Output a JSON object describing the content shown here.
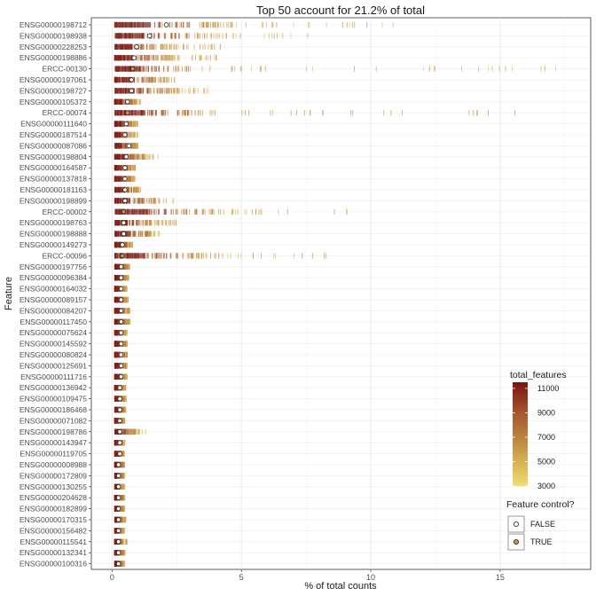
{
  "chart_data": {
    "type": "scatter",
    "title": "Top 50 account for 21.2% of total",
    "xlabel": "% of total counts",
    "ylabel": "Feature",
    "xlim": [
      -0.8,
      18.5
    ],
    "xticks": [
      0,
      5,
      10,
      15
    ],
    "grid": true,
    "features": [
      {
        "name": "ENSG00000198712",
        "median": 2.1,
        "core": [
          0.1,
          4.1
        ],
        "tail": 11.0,
        "control": false
      },
      {
        "name": "ENSG00000198938",
        "median": 1.45,
        "core": [
          0.1,
          3.3
        ],
        "tail": 7.6,
        "control": false
      },
      {
        "name": "ENSG00000228253",
        "median": 0.95,
        "core": [
          0.1,
          2.1
        ],
        "tail": 4.3,
        "control": false
      },
      {
        "name": "ENSG00000198886",
        "median": 0.85,
        "core": [
          0.1,
          2.2
        ],
        "tail": 4.5,
        "control": false
      },
      {
        "name": "ERCC-00130",
        "median": 0.8,
        "core": [
          0.1,
          3.0
        ],
        "tail": 18.0,
        "control": true
      },
      {
        "name": "ENSG00000197061",
        "median": 0.75,
        "core": [
          0.1,
          2.1
        ],
        "tail": 2.5,
        "control": false
      },
      {
        "name": "ENSG00000198727",
        "median": 0.75,
        "core": [
          0.1,
          2.3
        ],
        "tail": 3.8,
        "control": false
      },
      {
        "name": "ENSG00000105372",
        "median": 0.6,
        "core": [
          0.1,
          0.95
        ],
        "tail": 1.1,
        "control": false
      },
      {
        "name": "ERCC-00074",
        "median": 0.6,
        "core": [
          0.1,
          3.5
        ],
        "tail": 15.6,
        "control": true
      },
      {
        "name": "ENSG00000111640",
        "median": 0.55,
        "core": [
          0.1,
          0.9
        ],
        "tail": 1.0,
        "control": false
      },
      {
        "name": "ENSG00000187514",
        "median": 0.5,
        "core": [
          0.1,
          0.85
        ],
        "tail": 1.0,
        "control": false
      },
      {
        "name": "ENSG00000087086",
        "median": 0.65,
        "core": [
          0.1,
          0.95
        ],
        "tail": 1.0,
        "control": false
      },
      {
        "name": "ENSG00000198804",
        "median": 0.55,
        "core": [
          0.1,
          1.3
        ],
        "tail": 1.8,
        "control": false
      },
      {
        "name": "ENSG00000164587",
        "median": 0.5,
        "core": [
          0.1,
          0.85
        ],
        "tail": 0.9,
        "control": false
      },
      {
        "name": "ENSG00000137818",
        "median": 0.5,
        "core": [
          0.1,
          0.85
        ],
        "tail": 0.9,
        "control": false
      },
      {
        "name": "ENSG00000181163",
        "median": 0.5,
        "core": [
          0.1,
          1.0
        ],
        "tail": 1.1,
        "control": false
      },
      {
        "name": "ENSG00000198899",
        "median": 0.5,
        "core": [
          0.1,
          1.8
        ],
        "tail": 2.6,
        "control": false
      },
      {
        "name": "ERCC-00002",
        "median": 0.45,
        "core": [
          0.1,
          3.8
        ],
        "tail": 9.5,
        "control": true
      },
      {
        "name": "ENSG00000198763",
        "median": 0.45,
        "core": [
          0.1,
          1.5
        ],
        "tail": 2.6,
        "control": false
      },
      {
        "name": "ENSG00000198888",
        "median": 0.45,
        "core": [
          0.1,
          1.5
        ],
        "tail": 2.1,
        "control": false
      },
      {
        "name": "ENSG00000149273",
        "median": 0.4,
        "core": [
          0.1,
          0.75
        ],
        "tail": 0.8,
        "control": false
      },
      {
        "name": "ERCC-00096",
        "median": 0.4,
        "core": [
          0.1,
          3.4
        ],
        "tail": 8.8,
        "control": true
      },
      {
        "name": "ENSG00000197756",
        "median": 0.35,
        "core": [
          0.1,
          0.65
        ],
        "tail": 0.7,
        "control": false
      },
      {
        "name": "ENSG00000096384",
        "median": 0.35,
        "core": [
          0.1,
          0.6
        ],
        "tail": 0.65,
        "control": false
      },
      {
        "name": "ENSG00000164032",
        "median": 0.35,
        "core": [
          0.1,
          0.55
        ],
        "tail": 0.6,
        "control": false
      },
      {
        "name": "ENSG00000089157",
        "median": 0.35,
        "core": [
          0.1,
          0.6
        ],
        "tail": 0.65,
        "control": false
      },
      {
        "name": "ENSG00000084207",
        "median": 0.35,
        "core": [
          0.1,
          0.65
        ],
        "tail": 0.7,
        "control": false
      },
      {
        "name": "ENSG00000117450",
        "median": 0.35,
        "core": [
          0.1,
          0.65
        ],
        "tail": 0.7,
        "control": false
      },
      {
        "name": "ENSG00000075624",
        "median": 0.35,
        "core": [
          0.1,
          0.55
        ],
        "tail": 0.6,
        "control": false
      },
      {
        "name": "ENSG00000145592",
        "median": 0.35,
        "core": [
          0.1,
          0.55
        ],
        "tail": 0.6,
        "control": false
      },
      {
        "name": "ENSG00000080824",
        "median": 0.35,
        "core": [
          0.1,
          0.55
        ],
        "tail": 0.6,
        "control": false
      },
      {
        "name": "ENSG00000125691",
        "median": 0.35,
        "core": [
          0.1,
          0.55
        ],
        "tail": 0.6,
        "control": false
      },
      {
        "name": "ENSG00000111716",
        "median": 0.35,
        "core": [
          0.1,
          0.55
        ],
        "tail": 0.6,
        "control": false
      },
      {
        "name": "ENSG00000136942",
        "median": 0.3,
        "core": [
          0.1,
          0.5
        ],
        "tail": 0.55,
        "control": false
      },
      {
        "name": "ENSG00000109475",
        "median": 0.3,
        "core": [
          0.1,
          0.5
        ],
        "tail": 0.55,
        "control": false
      },
      {
        "name": "ENSG00000186468",
        "median": 0.3,
        "core": [
          0.1,
          0.5
        ],
        "tail": 0.55,
        "control": false
      },
      {
        "name": "ENSG00000071082",
        "median": 0.3,
        "core": [
          0.1,
          0.45
        ],
        "tail": 0.5,
        "control": false
      },
      {
        "name": "ENSG00000198786",
        "median": 0.3,
        "core": [
          0.1,
          0.9
        ],
        "tail": 1.4,
        "control": false
      },
      {
        "name": "ENSG00000143947",
        "median": 0.3,
        "core": [
          0.1,
          0.45
        ],
        "tail": 0.5,
        "control": false
      },
      {
        "name": "ENSG00000119705",
        "median": 0.3,
        "core": [
          0.1,
          0.45
        ],
        "tail": 0.5,
        "control": false
      },
      {
        "name": "ENSG00000008988",
        "median": 0.25,
        "core": [
          0.1,
          0.45
        ],
        "tail": 0.5,
        "control": false
      },
      {
        "name": "ENSG00000172809",
        "median": 0.25,
        "core": [
          0.1,
          0.45
        ],
        "tail": 0.5,
        "control": false
      },
      {
        "name": "ENSG00000130255",
        "median": 0.25,
        "core": [
          0.1,
          0.45
        ],
        "tail": 0.5,
        "control": false
      },
      {
        "name": "ENSG00000204628",
        "median": 0.25,
        "core": [
          0.1,
          0.45
        ],
        "tail": 0.5,
        "control": false
      },
      {
        "name": "ENSG00000182899",
        "median": 0.25,
        "core": [
          0.1,
          0.45
        ],
        "tail": 0.5,
        "control": false
      },
      {
        "name": "ENSG00000170315",
        "median": 0.25,
        "core": [
          0.1,
          0.5
        ],
        "tail": 0.55,
        "control": false
      },
      {
        "name": "ENSG00000156482",
        "median": 0.25,
        "core": [
          0.1,
          0.45
        ],
        "tail": 0.5,
        "control": false
      },
      {
        "name": "ENSG00000115541",
        "median": 0.25,
        "core": [
          0.1,
          0.45
        ],
        "tail": 0.6,
        "control": false
      },
      {
        "name": "ENSG00000132341",
        "median": 0.25,
        "core": [
          0.1,
          0.45
        ],
        "tail": 0.5,
        "control": false
      },
      {
        "name": "ENSG00000100316",
        "median": 0.25,
        "core": [
          0.1,
          0.45
        ],
        "tail": 0.5,
        "control": false
      }
    ],
    "color_legend": {
      "title": "total_features",
      "min": 3000,
      "max": 11500,
      "breaks": [
        3000,
        5000,
        7000,
        9000,
        11000
      ],
      "colors": [
        "#f0de6f",
        "#c79a4a",
        "#a4572f",
        "#7a1414"
      ]
    },
    "shape_legend": {
      "title": "Feature control?",
      "items": [
        {
          "label": "FALSE",
          "fill": "#ffffff"
        },
        {
          "label": "TRUE",
          "fill": "#c79a4a"
        }
      ]
    }
  }
}
